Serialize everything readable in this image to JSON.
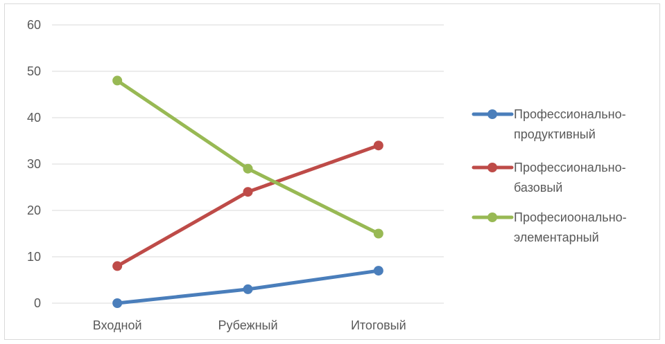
{
  "chart_data": {
    "type": "line",
    "categories": [
      "Входной",
      "Рубежный",
      "Итоговый"
    ],
    "ylim": [
      0,
      60
    ],
    "yticks": [
      0,
      10,
      20,
      30,
      40,
      50,
      60
    ],
    "grid": true,
    "legend_position": "right",
    "series": [
      {
        "name_lines": [
          "Профессионально-",
          "продуктивный"
        ],
        "color": "#4a7ebb",
        "values": [
          0,
          3,
          7
        ]
      },
      {
        "name_lines": [
          "Профессионально-",
          "базовый"
        ],
        "color": "#be4b48",
        "values": [
          8,
          24,
          34
        ]
      },
      {
        "name_lines": [
          "Професиоонально-",
          "элементарный"
        ],
        "color": "#98b954",
        "values": [
          48,
          29,
          15
        ]
      }
    ]
  }
}
